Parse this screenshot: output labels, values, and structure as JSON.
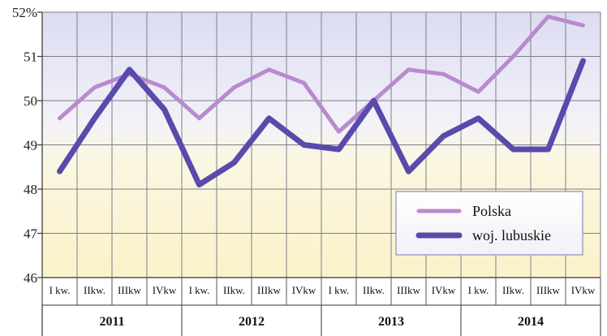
{
  "chart_data": {
    "type": "line",
    "title": "",
    "xlabel": "",
    "ylabel": "",
    "ylim": [
      46,
      52
    ],
    "yticks": [
      "46",
      "47",
      "48",
      "49",
      "50",
      "51",
      "52%"
    ],
    "grid": true,
    "legend_position": "bottom-right",
    "years": [
      "2011",
      "2012",
      "2013",
      "2014"
    ],
    "categories": [
      "I kw.",
      "IIkw.",
      "IIIkw",
      "IVkw",
      "I kw.",
      "IIkw.",
      "IIIkw",
      "IVkw",
      "I kw.",
      "IIkw.",
      "IIIkw",
      "IVkw",
      "I kw.",
      "IIkw.",
      "IIIkw",
      "IVkw"
    ],
    "series": [
      {
        "name": "Polska",
        "color": "#b98ad0",
        "values": [
          49.6,
          50.3,
          50.6,
          50.3,
          49.6,
          50.3,
          50.7,
          50.4,
          49.3,
          50.0,
          50.7,
          50.6,
          50.2,
          51.0,
          51.9,
          51.7
        ]
      },
      {
        "name": "woj. lubuskie",
        "color": "#5a4aac",
        "values": [
          48.4,
          49.6,
          50.7,
          49.8,
          48.1,
          48.6,
          49.6,
          49.0,
          48.9,
          50.0,
          48.4,
          49.2,
          49.6,
          48.9,
          48.9,
          50.9
        ]
      }
    ]
  }
}
